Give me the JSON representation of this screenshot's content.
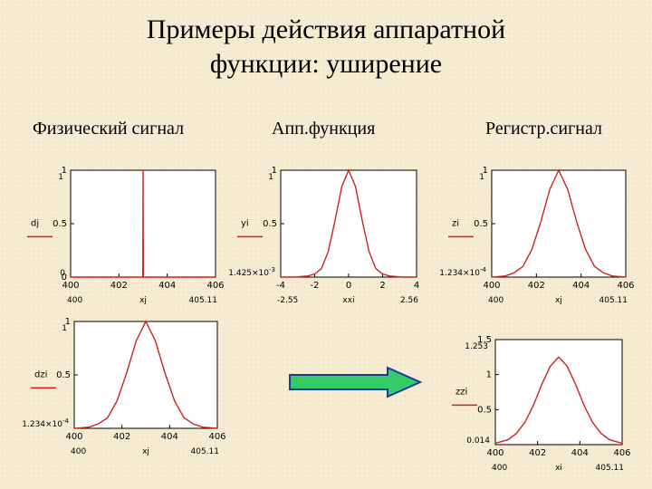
{
  "title": {
    "line1": "Примеры действия аппаратной",
    "line2": "функции: уширение"
  },
  "headers": {
    "col1": "Физический сигнал",
    "col2": "Апп.функция",
    "col3": "Регистр.сигнал"
  },
  "colors": {
    "curve": "#cc2222",
    "axis": "#000000",
    "grid": "#d0d0d0",
    "arrow_fill": "#33cc66",
    "arrow_stroke": "#1a3a99"
  },
  "chart_data": [
    {
      "id": "physical",
      "type": "line",
      "xlim": [
        400,
        406
      ],
      "ylim": [
        0,
        1
      ],
      "xticks": [
        "400",
        "402",
        "404",
        "406"
      ],
      "yticks": [
        "0",
        "0.5",
        "1"
      ],
      "ylabel": "dj",
      "xlabel": "xj",
      "ymax_label": "1",
      "ymin_label": "0",
      "xmin_label": "400",
      "xmax_label": "405.11",
      "x": [
        400,
        402.99,
        403.0,
        403.01,
        406
      ],
      "y": [
        0,
        0,
        1,
        0,
        0
      ]
    },
    {
      "id": "apparatus",
      "type": "line",
      "xlim": [
        -4,
        4
      ],
      "ylim": [
        0,
        1
      ],
      "xticks": [
        "-4",
        "-2",
        "0",
        "2",
        "4"
      ],
      "yticks": [
        "0.5",
        "1"
      ],
      "ylabel": "yi",
      "xlabel": "xxi",
      "ymax_label": "1",
      "ymin_label": "1.425×10",
      "ymin_exp": "-3",
      "xmin_label": "-2.55",
      "xmax_label": "2.56",
      "x": [
        -4.0,
        -3.2,
        -2.4,
        -2.0,
        -1.6,
        -1.2,
        -0.8,
        -0.4,
        0.0,
        0.4,
        0.8,
        1.2,
        1.6,
        2.0,
        2.4,
        3.2,
        4.0
      ],
      "y": [
        0.0,
        0.0,
        0.01,
        0.03,
        0.08,
        0.24,
        0.53,
        0.85,
        1.0,
        0.85,
        0.53,
        0.24,
        0.08,
        0.03,
        0.01,
        0.0,
        0.0
      ]
    },
    {
      "id": "registered1",
      "type": "line",
      "xlim": [
        400,
        406
      ],
      "ylim": [
        0,
        1
      ],
      "xticks": [
        "400",
        "402",
        "404",
        "406"
      ],
      "yticks": [
        "0.5",
        "1"
      ],
      "ylabel": "zi",
      "xlabel": "xj",
      "ymax_label": "1",
      "ymin_label": "1.234×10",
      "ymin_exp": "-4",
      "xmin_label": "400",
      "xmax_label": "405.11",
      "x": [
        400.0,
        400.6,
        401.0,
        401.4,
        401.8,
        402.2,
        402.6,
        403.0,
        403.4,
        403.8,
        404.2,
        404.6,
        405.0,
        405.4,
        406.0
      ],
      "y": [
        0.0,
        0.01,
        0.04,
        0.1,
        0.26,
        0.52,
        0.82,
        1.0,
        0.82,
        0.52,
        0.26,
        0.1,
        0.04,
        0.01,
        0.0
      ]
    },
    {
      "id": "physical2",
      "type": "line",
      "xlim": [
        400,
        406
      ],
      "ylim": [
        0,
        1
      ],
      "xticks": [
        "400",
        "402",
        "404",
        "406"
      ],
      "yticks": [
        "0.5",
        "1"
      ],
      "ylabel": "dzi",
      "xlabel": "xj",
      "ymax_label": "1",
      "ymin_label": "1.234×10",
      "ymin_exp": "-4",
      "xmin_label": "400",
      "xmax_label": "405.11",
      "x": [
        400.0,
        400.6,
        401.0,
        401.4,
        401.8,
        402.2,
        402.6,
        403.0,
        403.4,
        403.8,
        404.2,
        404.6,
        405.0,
        405.4,
        406.0
      ],
      "y": [
        0.0,
        0.01,
        0.04,
        0.1,
        0.26,
        0.52,
        0.82,
        1.0,
        0.82,
        0.52,
        0.26,
        0.1,
        0.04,
        0.01,
        0.0
      ]
    },
    {
      "id": "registered2",
      "type": "line",
      "xlim": [
        400,
        406
      ],
      "ylim": [
        0,
        1.5
      ],
      "xticks": [
        "400",
        "402",
        "404",
        "406"
      ],
      "yticks": [
        "0.5",
        "1",
        "1.5"
      ],
      "ylabel": "zzi",
      "xlabel": "xi",
      "ymax_label": "1.253",
      "ymin_label": "0.014",
      "xmin_label": "400",
      "xmax_label": "405.11",
      "x": [
        400.0,
        400.6,
        401.0,
        401.4,
        401.8,
        402.2,
        402.6,
        403.0,
        403.4,
        403.8,
        404.2,
        404.6,
        405.0,
        405.4,
        406.0
      ],
      "y": [
        0.02,
        0.07,
        0.16,
        0.32,
        0.56,
        0.86,
        1.12,
        1.25,
        1.12,
        0.86,
        0.56,
        0.32,
        0.16,
        0.07,
        0.02
      ]
    }
  ]
}
